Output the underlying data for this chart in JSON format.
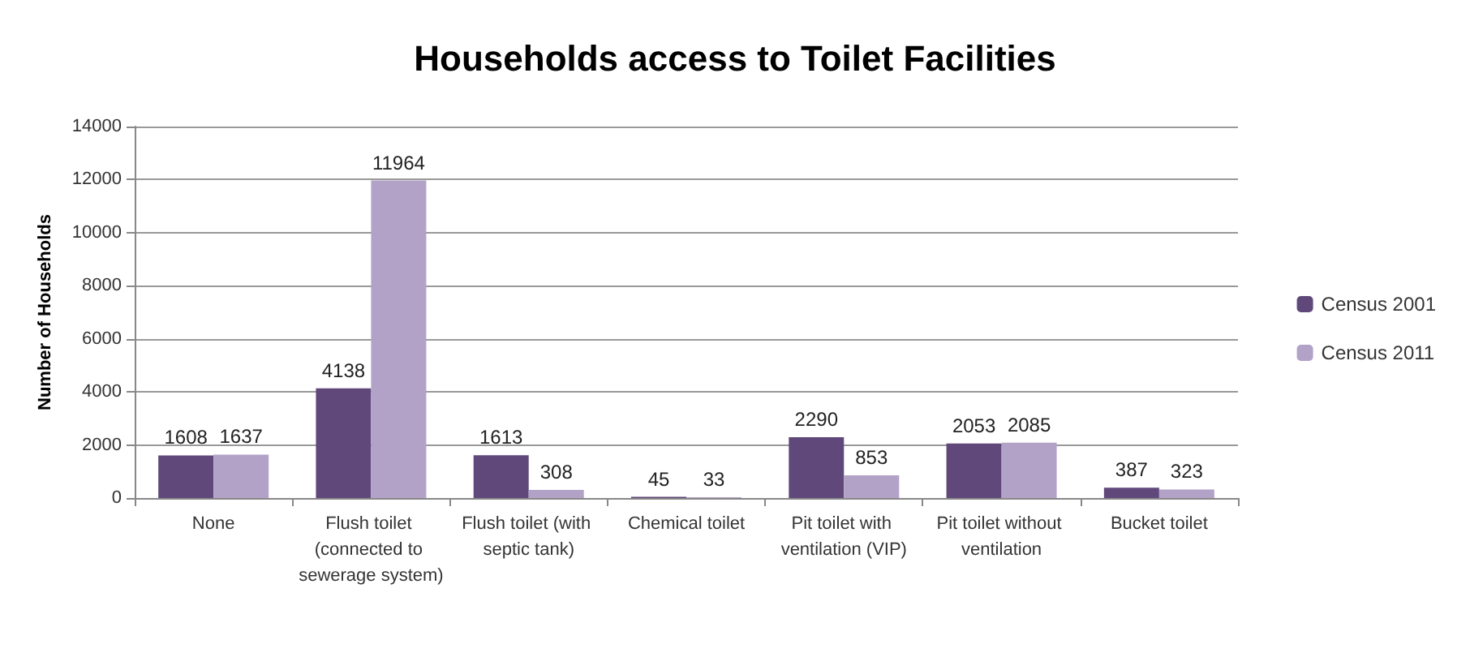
{
  "chart_data": {
    "type": "bar",
    "title": "Households access to Toilet Facilities",
    "ylabel": "Number of Households",
    "categories": [
      "None",
      "Flush toilet (connected to sewerage system)",
      "Flush toilet (with septic tank)",
      "Chemical toilet",
      "Pit toilet with ventilation (VIP)",
      "Pit toilet without ventilation",
      "Bucket toilet"
    ],
    "series": [
      {
        "name": "Census 2001",
        "color": "#60497a",
        "values": [
          1608,
          4138,
          1613,
          45,
          2290,
          2053,
          387
        ]
      },
      {
        "name": "Census 2011",
        "color": "#b3a2c7",
        "values": [
          1637,
          11964,
          308,
          33,
          853,
          2085,
          323
        ]
      }
    ],
    "ylim": [
      0,
      14000
    ],
    "yticks": [
      0,
      2000,
      4000,
      6000,
      8000,
      10000,
      12000,
      14000
    ],
    "grid": "y",
    "legend": "right",
    "data_labels": true
  }
}
